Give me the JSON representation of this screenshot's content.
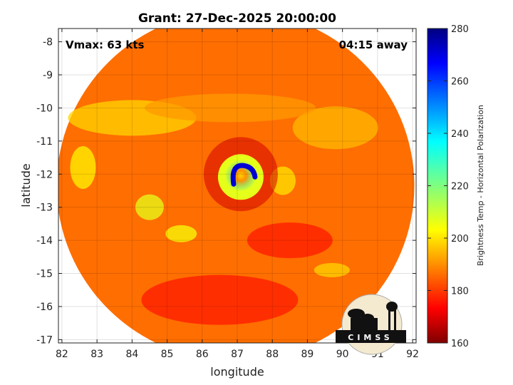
{
  "chart_data": {
    "type": "heatmap",
    "title": "Grant: 27-Dec-2025 20:00:00",
    "xlabel": "longitude",
    "ylabel": "latitude",
    "xlim": [
      81.9,
      92.1
    ],
    "ylim": [
      -17.1,
      -7.6
    ],
    "x_ticks": [
      82,
      83,
      84,
      85,
      86,
      87,
      88,
      89,
      90,
      91,
      92
    ],
    "y_ticks": [
      -8,
      -9,
      -10,
      -11,
      -12,
      -13,
      -14,
      -15,
      -16,
      -17
    ],
    "grid": true,
    "annotations": {
      "vmax": "Vmax: 63 kts",
      "away": "04:15 away"
    },
    "colorbar": {
      "label": "Brightness Temp - Horizontal Polarization",
      "range": [
        160,
        280
      ],
      "ticks": [
        160,
        180,
        200,
        220,
        240,
        260,
        280
      ],
      "colormap": "jet",
      "placement": "right"
    },
    "footprint": {
      "center_lon": 86.95,
      "center_lat": -12.35,
      "radius_deg": 5.1
    },
    "eye": {
      "lon": 87.1,
      "lat": -12.0,
      "min_value": 170
    },
    "logo_text": "CIMSS"
  }
}
